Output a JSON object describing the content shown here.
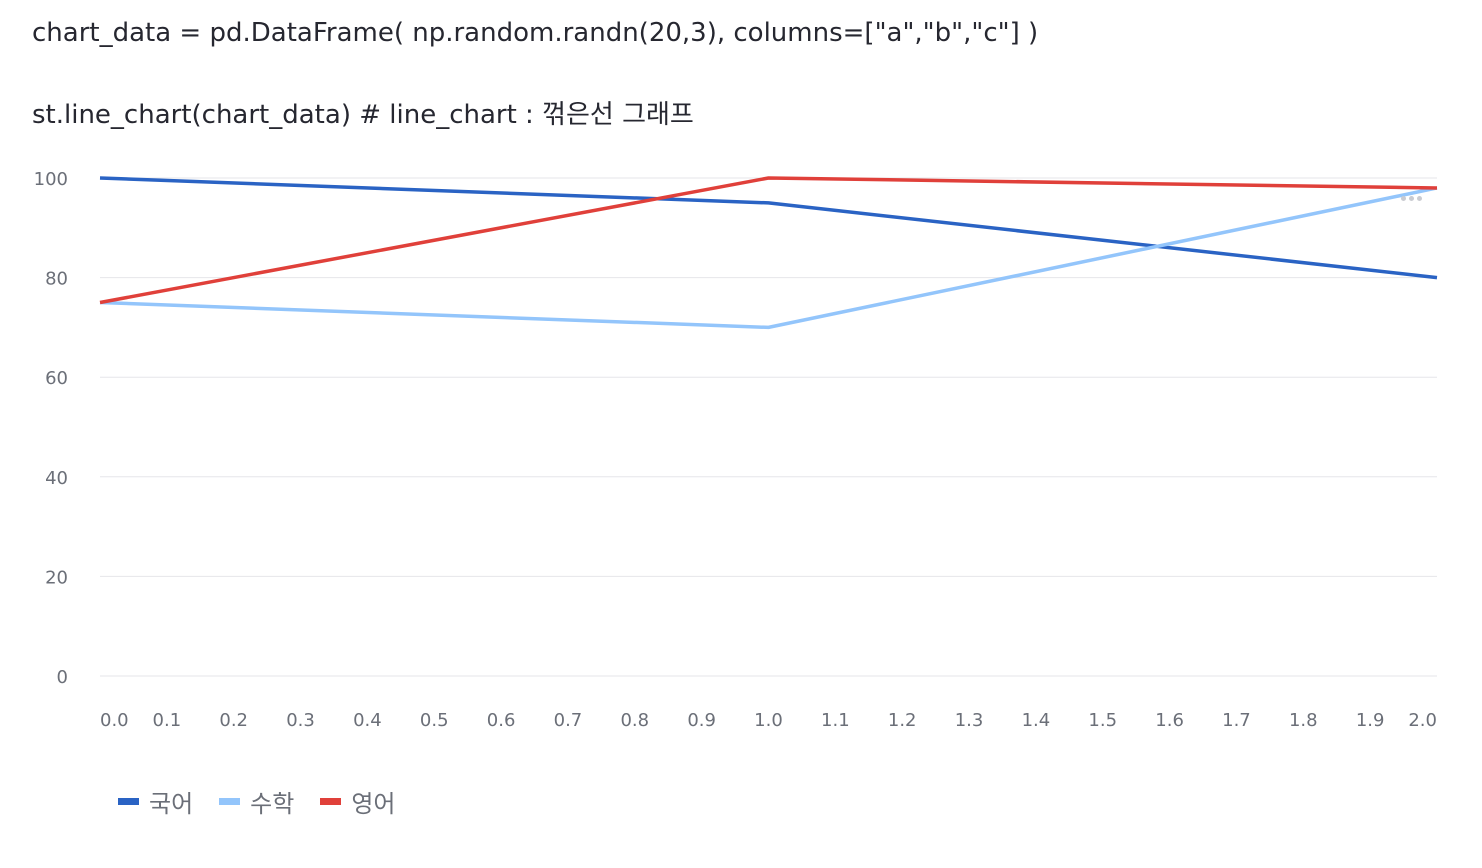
{
  "code": {
    "line1": "chart_data = pd.DataFrame( np.random.randn(20,3), columns=[\"a\",\"b\",\"c\"] )",
    "line2": "st.line_chart(chart_data) # line_chart : 꺾은선 그래프"
  },
  "chart_data": {
    "type": "line",
    "x": [
      0,
      1,
      2
    ],
    "series": [
      {
        "name": "국어",
        "values": [
          100,
          95,
          80
        ],
        "color": "#2a63c4"
      },
      {
        "name": "수학",
        "values": [
          75,
          70,
          98
        ],
        "color": "#93c5fb"
      },
      {
        "name": "영어",
        "values": [
          75,
          100,
          98
        ],
        "color": "#e0403a"
      }
    ],
    "xlim": [
      0,
      2
    ],
    "ylim": [
      0,
      100
    ],
    "x_ticks": [
      "0.0",
      "0.1",
      "0.2",
      "0.3",
      "0.4",
      "0.5",
      "0.6",
      "0.7",
      "0.8",
      "0.9",
      "1.0",
      "1.1",
      "1.2",
      "1.3",
      "1.4",
      "1.5",
      "1.6",
      "1.7",
      "1.8",
      "1.9",
      "2.0"
    ],
    "y_ticks": [
      "0",
      "20",
      "40",
      "60",
      "80",
      "100"
    ],
    "grid": true,
    "legend_position": "bottom-left"
  },
  "menu": {
    "icon": "more-horizontal-icon"
  }
}
